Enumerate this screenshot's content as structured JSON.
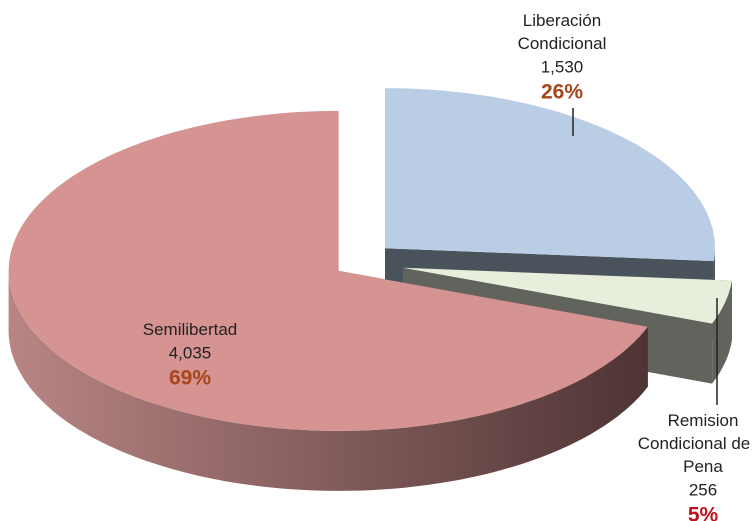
{
  "chart_data": {
    "type": "pie",
    "categories": [
      "Liberación Condicional",
      "Remision Condicional de la Pena",
      "Semilibertad"
    ],
    "values": [
      1530,
      256,
      4035
    ],
    "value_labels": [
      "1,530",
      "256",
      "4,035"
    ],
    "percentages": [
      26,
      5,
      69
    ],
    "percentage_labels": [
      "26%",
      "5%",
      "69%"
    ],
    "colors": [
      "#b9cde4",
      "#e8eedc",
      "#d59392"
    ]
  }
}
